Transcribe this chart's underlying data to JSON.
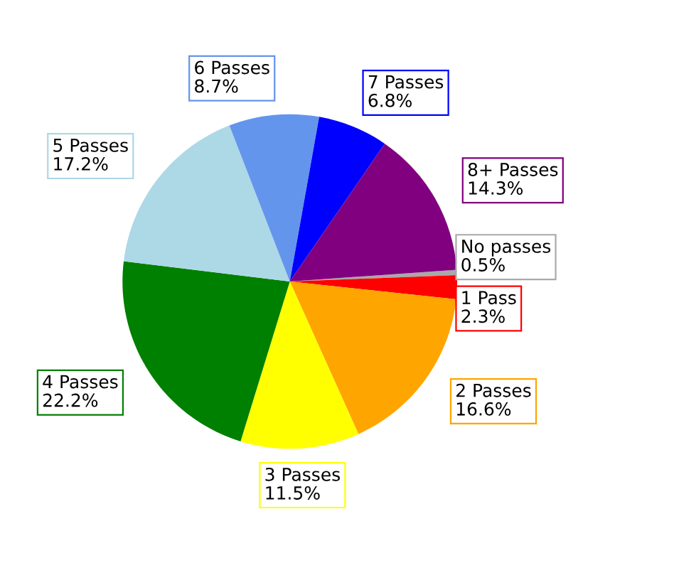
{
  "chart_data": {
    "type": "pie",
    "categories": [
      "No passes",
      "1 Pass",
      "2 Passes",
      "3 Passes",
      "4 Passes",
      "5 Passes",
      "6 Passes",
      "7 Passes",
      "8+ Passes"
    ],
    "values": [
      0.5,
      2.3,
      16.6,
      11.5,
      22.2,
      17.2,
      8.7,
      6.8,
      14.3
    ],
    "value_labels": [
      "0.5%",
      "2.3%",
      "16.6%",
      "11.5%",
      "22.2%",
      "17.2%",
      "8.7%",
      "6.8%",
      "14.3%"
    ],
    "colors": [
      "#a9a9a9",
      "#ff0000",
      "#ffa500",
      "#ffff00",
      "#008000",
      "#add8e6",
      "#6495ed",
      "#0000ff",
      "#800080"
    ],
    "legend": false
  }
}
